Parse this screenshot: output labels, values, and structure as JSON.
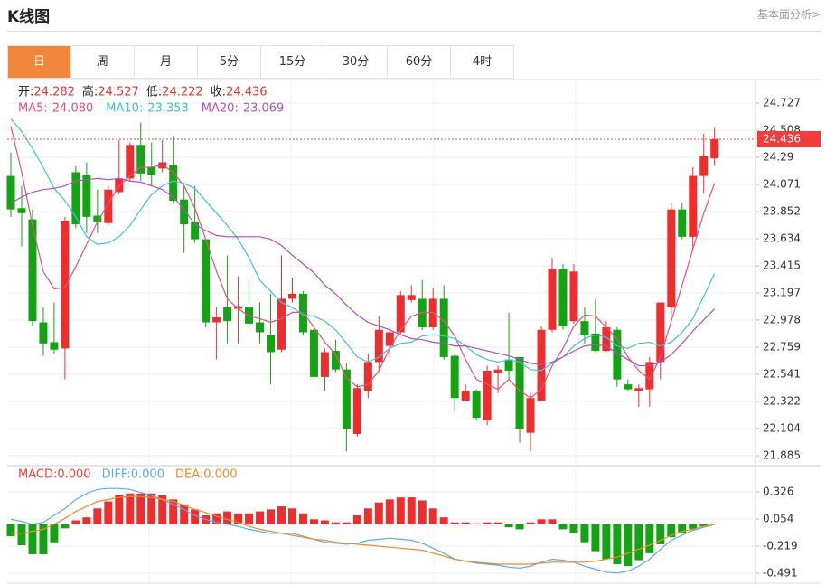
{
  "header": {
    "title": "K线图",
    "link": "基本面分析>"
  },
  "tabs": [
    "日",
    "周",
    "月",
    "5分",
    "15分",
    "30分",
    "60分",
    "4时"
  ],
  "active_tab": 0,
  "chart_data": [
    {
      "type": "candlestick",
      "ohlc_labels": [
        "开:",
        "高:",
        "低:",
        "收:"
      ],
      "label_color": "#222",
      "value_color": "#e8312f",
      "open": [
        24.14,
        23.88,
        23.79,
        22.96,
        22.8,
        22.75,
        24.17,
        24.15,
        23.82,
        23.76,
        24.01,
        24.12,
        24.39,
        24.21,
        24.2,
        24.23,
        23.95,
        23.77,
        23.63,
        22.96,
        23.08,
        23.07,
        23.08,
        22.96,
        22.86,
        22.74,
        23.15,
        23.19,
        22.9,
        22.52,
        22.73,
        22.58,
        22.06,
        22.41,
        22.64,
        22.77,
        22.88,
        23.14,
        23.15,
        22.92,
        23.15,
        22.69,
        22.33,
        22.41,
        22.17,
        22.55,
        22.66,
        22.68,
        22.07,
        22.33,
        22.9,
        23.39,
        22.97,
        22.97,
        22.87,
        22.73,
        22.9,
        22.46,
        22.41,
        22.42,
        22.64,
        23.08,
        23.87,
        23.65,
        24.14,
        24.282
      ],
      "high": [
        24.33,
        24.06,
        23.87,
        23.08,
        23.12,
        23.81,
        24.22,
        24.25,
        24.03,
        24.06,
        24.43,
        24.41,
        24.57,
        24.41,
        24.43,
        24.46,
        24.06,
        24.06,
        23.63,
        23.08,
        23.5,
        23.33,
        23.3,
        23.12,
        23.19,
        23.5,
        23.32,
        23.21,
        22.92,
        22.75,
        22.82,
        22.63,
        22.46,
        22.71,
        23.01,
        22.92,
        23.21,
        23.26,
        23.3,
        23.24,
        23.26,
        22.71,
        22.46,
        22.42,
        22.61,
        22.61,
        23.04,
        22.68,
        22.39,
        22.93,
        23.48,
        23.43,
        23.43,
        23.08,
        23.15,
        22.97,
        22.92,
        22.5,
        22.46,
        22.68,
        23.12,
        23.92,
        23.92,
        24.21,
        24.48,
        24.527
      ],
      "low": [
        23.81,
        23.57,
        22.93,
        22.69,
        22.71,
        22.5,
        23.72,
        23.68,
        23.68,
        23.74,
        23.99,
        24.1,
        24.1,
        24.06,
        24.17,
        23.92,
        23.52,
        23.6,
        22.92,
        22.66,
        22.79,
        22.79,
        22.9,
        22.79,
        22.46,
        22.72,
        23.12,
        22.86,
        22.5,
        22.41,
        22.56,
        21.92,
        22.04,
        22.35,
        22.57,
        22.68,
        22.86,
        23.12,
        22.9,
        22.9,
        22.66,
        22.24,
        22.32,
        22.17,
        22.13,
        22.39,
        22.5,
        21.99,
        21.92,
        22.32,
        22.88,
        22.9,
        22.95,
        22.79,
        22.72,
        22.72,
        22.44,
        22.41,
        22.28,
        22.28,
        22.5,
        23.01,
        23.63,
        23.55,
        24.0,
        24.222
      ],
      "close": [
        23.87,
        23.84,
        22.97,
        22.79,
        22.74,
        23.78,
        23.75,
        23.81,
        23.77,
        24.03,
        24.12,
        24.39,
        24.16,
        24.15,
        24.25,
        23.94,
        23.75,
        23.63,
        22.96,
        23.0,
        22.97,
        23.09,
        22.95,
        22.88,
        22.72,
        23.15,
        23.19,
        22.88,
        22.52,
        22.72,
        22.58,
        22.1,
        22.43,
        22.64,
        22.9,
        22.88,
        23.18,
        23.18,
        22.92,
        23.15,
        22.68,
        22.35,
        22.41,
        22.19,
        22.57,
        22.58,
        22.57,
        22.1,
        22.35,
        22.9,
        23.39,
        22.93,
        23.37,
        22.86,
        22.73,
        22.92,
        22.5,
        22.42,
        22.43,
        22.64,
        23.12,
        23.87,
        23.65,
        24.14,
        24.3,
        24.436
      ],
      "up_color": "#ee2e2e",
      "down_color": "#13a313",
      "last_price_color": "#f23b3b",
      "series": [
        {
          "name": "MA5:",
          "color": "#e8507a",
          "latest": {
            "value": 24.08,
            "label": "24.080"
          },
          "values": [
            24.54,
            24.17,
            23.74,
            23.37,
            23.23,
            23.24,
            23.41,
            23.59,
            23.77,
            23.92,
            24.06,
            24.14,
            24.21,
            24.21,
            24.23,
            24.17,
            24.06,
            23.88,
            23.63,
            23.37,
            23.15,
            23.07,
            23.01,
            22.99,
            22.96,
            22.99,
            23.04,
            23.04,
            22.92,
            22.8,
            22.7,
            22.51,
            22.44,
            22.46,
            22.57,
            22.75,
            22.9,
            23.01,
            23.04,
            23.04,
            22.97,
            22.85,
            22.66,
            22.5,
            22.46,
            22.42,
            22.5,
            22.41,
            22.35,
            22.42,
            22.61,
            22.75,
            22.93,
            23.02,
            23.01,
            22.92,
            22.83,
            22.68,
            22.57,
            22.5,
            22.68,
            22.97,
            23.26,
            23.55,
            23.84,
            24.08
          ]
        },
        {
          "name": "MA10:",
          "color": "#3ec3d6",
          "latest": {
            "value": 23.353,
            "label": "23.353"
          },
          "values": [
            24.6,
            24.5,
            24.36,
            24.21,
            24.04,
            23.94,
            23.81,
            23.65,
            23.59,
            23.6,
            23.65,
            23.74,
            23.87,
            23.99,
            24.06,
            24.1,
            24.08,
            24.04,
            23.94,
            23.84,
            23.74,
            23.63,
            23.48,
            23.3,
            23.21,
            23.12,
            23.08,
            23.02,
            23.01,
            22.97,
            22.9,
            22.79,
            22.68,
            22.64,
            22.68,
            22.75,
            22.79,
            22.8,
            22.85,
            22.86,
            22.85,
            22.83,
            22.77,
            22.7,
            22.66,
            22.64,
            22.66,
            22.64,
            22.58,
            22.57,
            22.63,
            22.68,
            22.77,
            22.83,
            22.86,
            22.84,
            22.77,
            22.75,
            22.79,
            22.8,
            22.77,
            22.8,
            22.88,
            22.99,
            23.17,
            23.353
          ]
        },
        {
          "name": "MA20:",
          "color": "#b34fbd",
          "latest": {
            "value": 23.069,
            "label": "23.069"
          },
          "values": [
            23.92,
            23.97,
            24.01,
            24.03,
            24.04,
            24.06,
            24.1,
            24.11,
            24.12,
            24.11,
            24.12,
            24.1,
            24.09,
            24.06,
            24.03,
            23.97,
            23.87,
            23.75,
            23.7,
            23.66,
            23.65,
            23.65,
            23.65,
            23.65,
            23.63,
            23.58,
            23.5,
            23.43,
            23.36,
            23.26,
            23.19,
            23.1,
            23.02,
            22.96,
            22.93,
            22.9,
            22.86,
            22.83,
            22.82,
            22.8,
            22.79,
            22.77,
            22.77,
            22.75,
            22.73,
            22.71,
            22.69,
            22.66,
            22.63,
            22.62,
            22.64,
            22.68,
            22.73,
            22.77,
            22.78,
            22.77,
            22.71,
            22.66,
            22.61,
            22.61,
            22.64,
            22.7,
            22.79,
            22.89,
            22.98,
            23.069
          ]
        }
      ],
      "ylim": [
        21.805,
        24.917
      ],
      "yticks": [
        24.727,
        24.508,
        24.29,
        24.071,
        23.852,
        23.634,
        23.415,
        23.197,
        22.978,
        22.759,
        22.541,
        22.322,
        22.104,
        21.885
      ],
      "grid": true
    },
    {
      "type": "macd",
      "up_color": "#ee2e2e",
      "down_color": "#13a313",
      "series": [
        {
          "name": "MACD:",
          "color": "#e8453c",
          "latest": {
            "value": 0,
            "label": "0.000"
          },
          "values": [
            -0.12,
            -0.21,
            -0.3,
            -0.3,
            -0.18,
            -0.04,
            0.04,
            0.07,
            0.16,
            0.23,
            0.29,
            0.31,
            0.31,
            0.31,
            0.29,
            0.25,
            0.2,
            0.15,
            0.09,
            0.11,
            0.13,
            0.11,
            0.11,
            0.13,
            0.15,
            0.18,
            0.16,
            0.11,
            0.05,
            0.04,
            0.02,
            0.02,
            0.09,
            0.16,
            0.22,
            0.25,
            0.27,
            0.27,
            0.24,
            0.16,
            0.07,
            0.02,
            0.02,
            0.01,
            0.02,
            0.02,
            -0.03,
            -0.05,
            0.02,
            0.05,
            0.05,
            -0.05,
            -0.09,
            -0.18,
            -0.27,
            -0.35,
            -0.4,
            -0.42,
            -0.36,
            -0.29,
            -0.2,
            -0.13,
            -0.09,
            -0.05,
            -0.02,
            0
          ]
        },
        {
          "name": "DIFF:",
          "color": "#5aaee8",
          "latest": {
            "value": 0,
            "label": "0.000"
          },
          "values": [
            0.05,
            0.03,
            0,
            0.02,
            0.09,
            0.16,
            0.25,
            0.31,
            0.35,
            0.36,
            0.36,
            0.35,
            0.32,
            0.29,
            0.25,
            0.2,
            0.15,
            0.09,
            0.05,
            0.02,
            0,
            -0.02,
            -0.05,
            -0.07,
            -0.09,
            -0.09,
            -0.09,
            -0.12,
            -0.15,
            -0.18,
            -0.19,
            -0.2,
            -0.19,
            -0.16,
            -0.15,
            -0.14,
            -0.15,
            -0.16,
            -0.19,
            -0.24,
            -0.29,
            -0.35,
            -0.37,
            -0.39,
            -0.4,
            -0.41,
            -0.43,
            -0.44,
            -0.42,
            -0.38,
            -0.35,
            -0.36,
            -0.38,
            -0.42,
            -0.45,
            -0.48,
            -0.49,
            -0.47,
            -0.42,
            -0.35,
            -0.25,
            -0.16,
            -0.11,
            -0.06,
            -0.03,
            0
          ]
        },
        {
          "name": "DEA:",
          "color": "#f08a2c",
          "latest": {
            "value": 0,
            "label": "0.000"
          },
          "values": [
            -0.09,
            -0.09,
            -0.07,
            -0.05,
            0,
            0.06,
            0.13,
            0.18,
            0.23,
            0.25,
            0.27,
            0.28,
            0.28,
            0.27,
            0.25,
            0.23,
            0.19,
            0.15,
            0.12,
            0.08,
            0.05,
            0.02,
            -0.02,
            -0.05,
            -0.07,
            -0.09,
            -0.11,
            -0.13,
            -0.15,
            -0.16,
            -0.18,
            -0.19,
            -0.2,
            -0.21,
            -0.22,
            -0.23,
            -0.24,
            -0.25,
            -0.26,
            -0.29,
            -0.32,
            -0.35,
            -0.37,
            -0.38,
            -0.39,
            -0.4,
            -0.4,
            -0.4,
            -0.4,
            -0.39,
            -0.38,
            -0.38,
            -0.38,
            -0.38,
            -0.37,
            -0.35,
            -0.33,
            -0.29,
            -0.25,
            -0.21,
            -0.16,
            -0.11,
            -0.07,
            -0.05,
            -0.02,
            0
          ]
        }
      ],
      "ylim": [
        -0.591,
        0.571
      ],
      "yticks": [
        0.326,
        0.054,
        -0.219,
        -0.491
      ],
      "grid": true
    }
  ]
}
